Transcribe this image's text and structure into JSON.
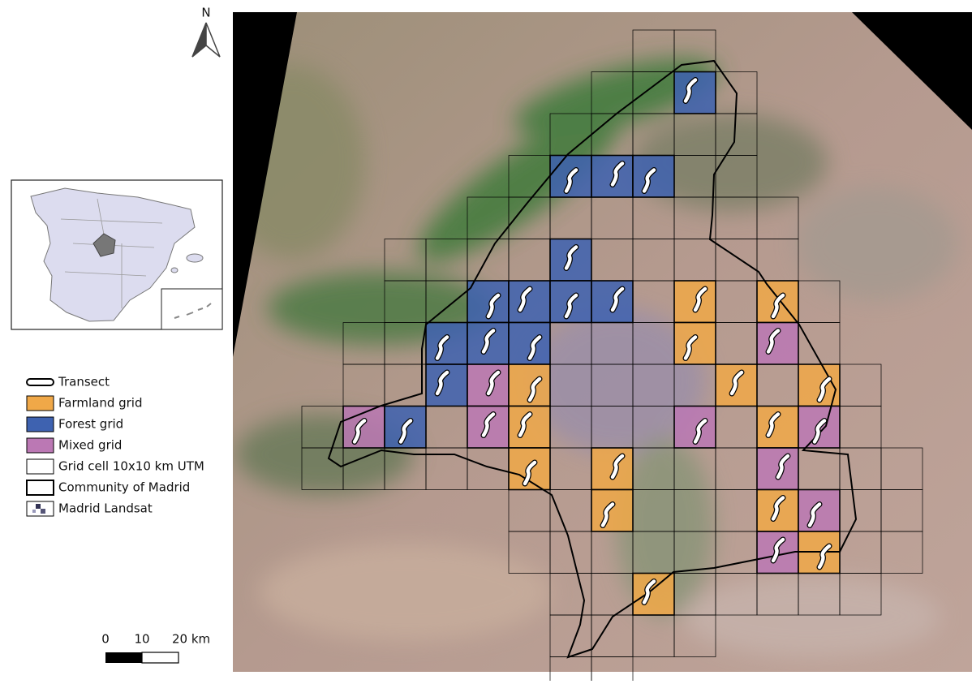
{
  "north_arrow": {
    "label": "N"
  },
  "legend": {
    "items": [
      {
        "label": "Transect"
      },
      {
        "label": "Farmland grid"
      },
      {
        "label": "Forest grid"
      },
      {
        "label": "Mixed grid"
      },
      {
        "label": "Grid cell 10x10 km UTM"
      },
      {
        "label": "Community of Madrid"
      },
      {
        "label": "Madrid Landsat"
      }
    ]
  },
  "scale_bar": {
    "labels": [
      "0",
      "10",
      "20 km"
    ]
  }
}
